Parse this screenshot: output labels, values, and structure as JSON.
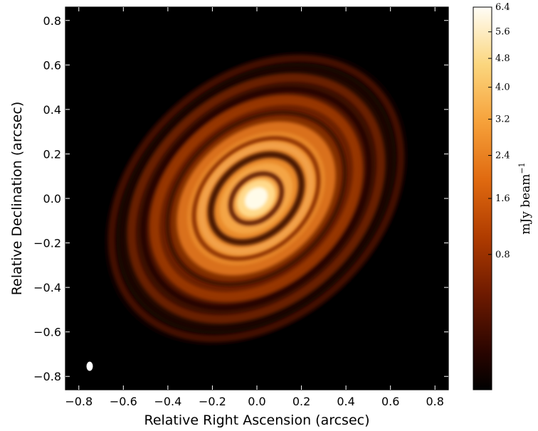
{
  "image": {
    "kind": "radio continuum image of protoplanetary disk with concentric rings",
    "colormap": "afmhot",
    "colors": {
      "background": "#000000",
      "ring_dark": "#3a0b00",
      "ring_mid": "#b43c00",
      "ring_bright": "#f08a1c",
      "core": "#fff6cc"
    }
  },
  "x_axis": {
    "title": "Relative Right Ascension (arcsec)",
    "ticks": [
      "−0.8",
      "−0.6",
      "−0.4",
      "−0.2",
      "0.0",
      "0.2",
      "0.4",
      "0.6",
      "0.8"
    ],
    "values": [
      -0.8,
      -0.6,
      -0.4,
      -0.2,
      0.0,
      0.2,
      0.4,
      0.6,
      0.8
    ],
    "range": [
      -0.86,
      0.86
    ]
  },
  "y_axis": {
    "title": "Relative Declination (arcsec)",
    "ticks": [
      "0.8",
      "0.6",
      "0.4",
      "0.2",
      "0.0",
      "−0.2",
      "−0.4",
      "−0.6",
      "−0.8"
    ],
    "values": [
      0.8,
      0.6,
      0.4,
      0.2,
      0.0,
      -0.2,
      -0.4,
      -0.6,
      -0.8
    ],
    "range": [
      -0.86,
      0.86
    ]
  },
  "colorbar": {
    "label": "mJy beam",
    "label_exp": "−1",
    "ticks": [
      "6.4",
      "5.6",
      "4.8",
      "4.0",
      "3.2",
      "2.4",
      "1.6",
      "0.8"
    ],
    "values": [
      6.4,
      5.6,
      4.8,
      4.0,
      3.2,
      2.4,
      1.6,
      0.8
    ],
    "scale": "sqrt",
    "range": [
      0,
      6.4
    ]
  },
  "beam": {
    "shape": "ellipse",
    "color": "#ffffff"
  }
}
